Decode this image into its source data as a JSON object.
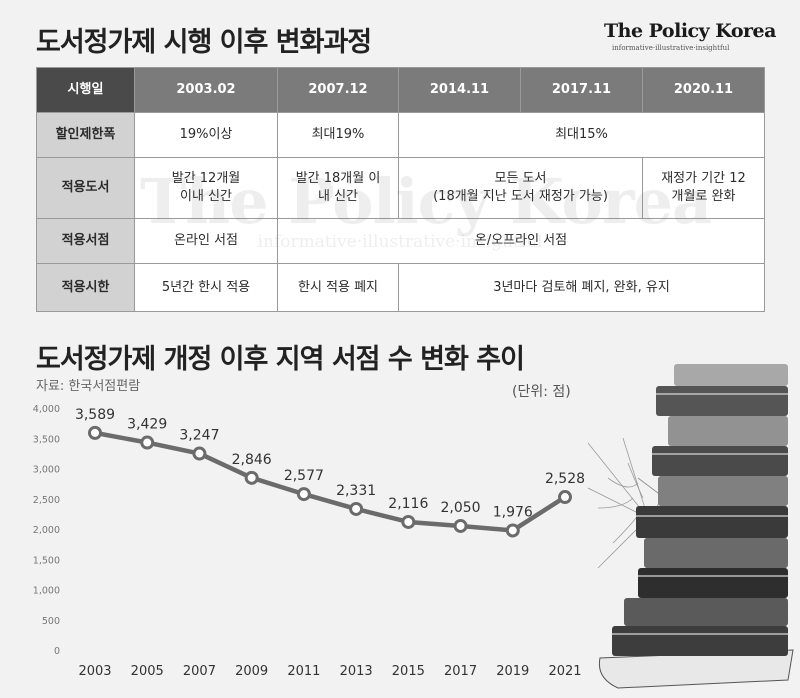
{
  "header": {
    "title": "도서정가제 시행 이후 변화과정",
    "brand_name": "The Policy Korea",
    "brand_tagline": "informative·illustrative·insightful"
  },
  "table": {
    "header": [
      "시행일",
      "2003.02",
      "2007.12",
      "2014.11",
      "2017.11",
      "2020.11"
    ],
    "rows": {
      "discount": {
        "label": "할인제한폭",
        "c2003": "19%이상",
        "c2007": "최대19%",
        "c2014": "최대15%"
      },
      "books": {
        "label": "적용도서",
        "c2003": "발간 12개월\n이내 신간",
        "c2007": "발간 18개월 이\n내 신간",
        "c2014": "모든 도서\n(18개월 지난 도서 재정가 가능)",
        "c2020": "재정가 기간 12\n개월로 완화"
      },
      "stores": {
        "label": "적용서점",
        "c2003": "온라인 서점",
        "c2007": "온/오프라인 서점"
      },
      "timelimit": {
        "label": "적용시한",
        "c2003": "5년간 한시 적용",
        "c2007": "한시 적용 폐지",
        "c2014": "3년마다 검토해 폐지, 완화, 유지"
      }
    }
  },
  "watermark": {
    "name": "The Policy Korea",
    "tagline": "informative·illustrative·insightful"
  },
  "chart_title": "도서정가제 개정 이후 지역 서점 수 변화 추이",
  "source": "자료: 한국서점편람",
  "unit": "(단위: 점)",
  "chart_data": {
    "type": "line",
    "x": [
      "2003",
      "2005",
      "2007",
      "2009",
      "2011",
      "2013",
      "2015",
      "2017",
      "2019",
      "2021"
    ],
    "values": [
      3589,
      3429,
      3247,
      2846,
      2577,
      2331,
      2116,
      2050,
      1976,
      2528
    ],
    "value_labels": [
      "3,589",
      "3,429",
      "3,247",
      "2,846",
      "2,577",
      "2,331",
      "2,116",
      "2,050",
      "1,976",
      "2,528"
    ],
    "yticks": [
      "0",
      "500",
      "1,000",
      "1,500",
      "2,000",
      "2,500",
      "3,000",
      "3,500",
      "4,000"
    ],
    "ytick_values": [
      0,
      500,
      1000,
      1500,
      2000,
      2500,
      3000,
      3500,
      4000
    ],
    "ylim": [
      0,
      4000
    ],
    "line_color": "#6b6b6b",
    "grid": false
  },
  "colors": {
    "header_dark": "#4a4a4a",
    "header_gray": "#7b7b7b",
    "rowhead": "#d2d2d2",
    "background": "#f2f2f2"
  },
  "decoration": {
    "illustration": "stacked-books-with-cobwebs"
  }
}
